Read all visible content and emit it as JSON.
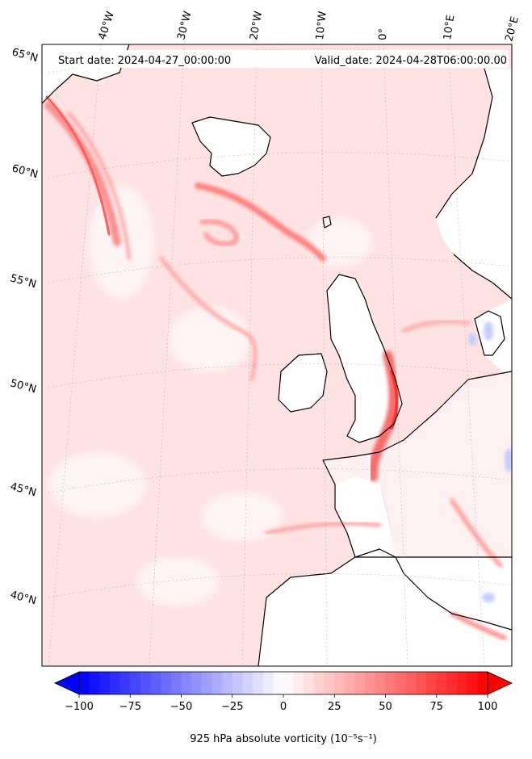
{
  "header": {
    "start_date": "Start date: 2024-04-27_00:00:00",
    "valid_date": "Valid_date: 2024-04-28T06:00:00.00"
  },
  "longitude_labels": [
    "40°W",
    "30°W",
    "20°W",
    "10°W",
    "0°",
    "10°E",
    "20°E"
  ],
  "latitude_labels": [
    "65°N",
    "60°N",
    "55°N",
    "50°N",
    "45°N",
    "40°N"
  ],
  "colorbar": {
    "ticks": [
      "−100",
      "−75",
      "−50",
      "−25",
      "0",
      "25",
      "50",
      "75",
      "100"
    ],
    "min": -100,
    "max": 100,
    "step": 5,
    "label": "925 hPa absolute vorticity (10⁻⁵s⁻¹)",
    "colormap": "bwr",
    "extend": "both"
  },
  "colors": {
    "coastline": "#000000",
    "background_low_vorticity": "#ffe6e6",
    "high_positive": "#ff3333",
    "negative": "#bfc8ff"
  }
}
